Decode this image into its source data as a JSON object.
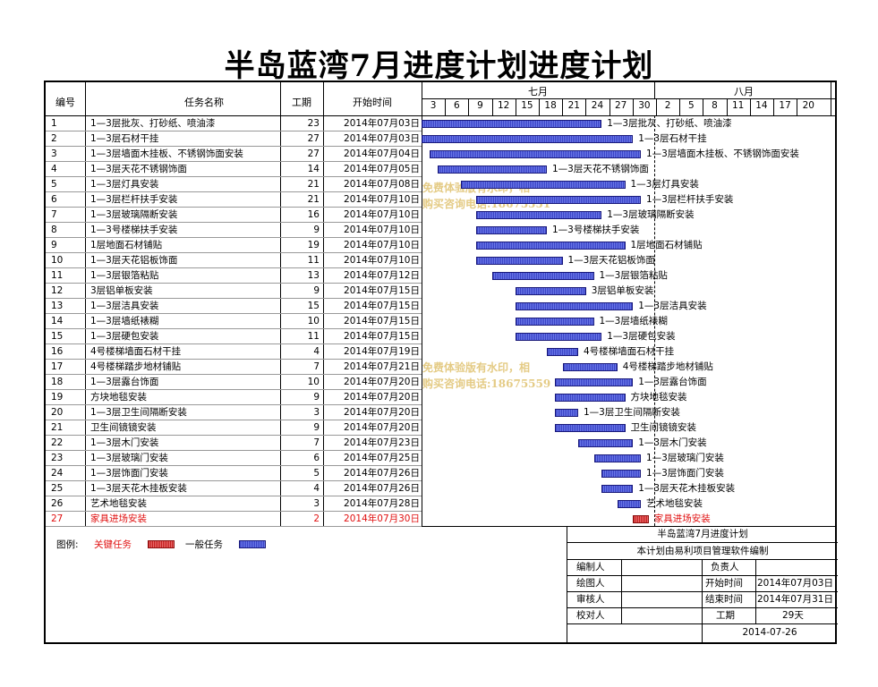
{
  "title": "半岛蓝湾7月进度计划进度计划",
  "table_headers": {
    "id": "编号",
    "name": "任务名称",
    "duration": "工期",
    "start": "开始时间"
  },
  "months": [
    {
      "label": "七月"
    },
    {
      "label": "八月"
    }
  ],
  "ticks": [
    "3",
    "6",
    "9",
    "12",
    "15",
    "18",
    "21",
    "24",
    "27",
    "30",
    "2",
    "5",
    "8",
    "11",
    "14",
    "17",
    "20"
  ],
  "chart_data": {
    "type": "gantt",
    "title": "半岛蓝湾7月进度计划进度计划",
    "axis": {
      "start": "2014-07-03",
      "unit": "day",
      "ticks": [
        "3",
        "6",
        "9",
        "12",
        "15",
        "18",
        "21",
        "24",
        "27",
        "30",
        "2",
        "5",
        "8",
        "11",
        "14",
        "17",
        "20"
      ]
    },
    "tasks": [
      {
        "id": "1",
        "name": "1—3层批灰、打砂纸、喷油漆",
        "duration": 23,
        "start": "2014年07月03日",
        "start_day": 3,
        "critical": false
      },
      {
        "id": "2",
        "name": "1—3层石材干挂",
        "duration": 27,
        "start": "2014年07月03日",
        "start_day": 3,
        "critical": false
      },
      {
        "id": "3",
        "name": "1—3层墙面木挂板、不锈钢饰面安装",
        "duration": 27,
        "start": "2014年07月04日",
        "start_day": 4,
        "critical": false
      },
      {
        "id": "4",
        "name": "1—3层天花不锈钢饰面",
        "duration": 14,
        "start": "2014年07月05日",
        "start_day": 5,
        "critical": false
      },
      {
        "id": "5",
        "name": "1—3层灯具安装",
        "duration": 21,
        "start": "2014年07月08日",
        "start_day": 8,
        "critical": false
      },
      {
        "id": "6",
        "name": "1—3层栏杆扶手安装",
        "duration": 21,
        "start": "2014年07月10日",
        "start_day": 10,
        "critical": false
      },
      {
        "id": "7",
        "name": "1—3层玻璃隔断安装",
        "duration": 16,
        "start": "2014年07月10日",
        "start_day": 10,
        "critical": false
      },
      {
        "id": "8",
        "name": "1—3号楼梯扶手安装",
        "duration": 9,
        "start": "2014年07月10日",
        "start_day": 10,
        "critical": false
      },
      {
        "id": "9",
        "name": "1层地面石材铺贴",
        "duration": 19,
        "start": "2014年07月10日",
        "start_day": 10,
        "critical": false
      },
      {
        "id": "10",
        "name": "1—3层天花铝板饰面",
        "duration": 11,
        "start": "2014年07月10日",
        "start_day": 10,
        "critical": false
      },
      {
        "id": "11",
        "name": "1—3层银箔粘贴",
        "duration": 13,
        "start": "2014年07月12日",
        "start_day": 12,
        "critical": false
      },
      {
        "id": "12",
        "name": "3层铝单板安装",
        "duration": 9,
        "start": "2014年07月15日",
        "start_day": 15,
        "critical": false
      },
      {
        "id": "13",
        "name": "1—3层洁具安装",
        "duration": 15,
        "start": "2014年07月15日",
        "start_day": 15,
        "critical": false
      },
      {
        "id": "14",
        "name": "1—3层墙纸裱糊",
        "duration": 10,
        "start": "2014年07月15日",
        "start_day": 15,
        "critical": false
      },
      {
        "id": "15",
        "name": "1—3层硬包安装",
        "duration": 11,
        "start": "2014年07月15日",
        "start_day": 15,
        "critical": false
      },
      {
        "id": "16",
        "name": "4号楼梯墙面石材干挂",
        "duration": 4,
        "start": "2014年07月19日",
        "start_day": 19,
        "critical": false
      },
      {
        "id": "17",
        "name": "4号楼梯踏步地材铺贴",
        "duration": 7,
        "start": "2014年07月21日",
        "start_day": 21,
        "critical": false
      },
      {
        "id": "18",
        "name": "1—3层露台饰面",
        "duration": 10,
        "start": "2014年07月20日",
        "start_day": 20,
        "critical": false
      },
      {
        "id": "19",
        "name": "方块地毯安装",
        "duration": 9,
        "start": "2014年07月20日",
        "start_day": 20,
        "critical": false
      },
      {
        "id": "20",
        "name": "1—3层卫生间隔断安装",
        "duration": 3,
        "start": "2014年07月20日",
        "start_day": 20,
        "critical": false
      },
      {
        "id": "21",
        "name": "卫生间镜镜安装",
        "duration": 9,
        "start": "2014年07月20日",
        "start_day": 20,
        "critical": false
      },
      {
        "id": "22",
        "name": "1—3层木门安装",
        "duration": 7,
        "start": "2014年07月23日",
        "start_day": 23,
        "critical": false
      },
      {
        "id": "23",
        "name": "1—3层玻璃门安装",
        "duration": 6,
        "start": "2014年07月25日",
        "start_day": 25,
        "critical": false
      },
      {
        "id": "24",
        "name": "1—3层饰面门安装",
        "duration": 5,
        "start": "2014年07月26日",
        "start_day": 26,
        "critical": false
      },
      {
        "id": "25",
        "name": "1—3层天花木挂板安装",
        "duration": 4,
        "start": "2014年07月26日",
        "start_day": 26,
        "critical": false
      },
      {
        "id": "26",
        "name": "艺术地毯安装",
        "duration": 3,
        "start": "2014年07月28日",
        "start_day": 28,
        "critical": false
      },
      {
        "id": "27",
        "name": "家具进场安装",
        "duration": 2,
        "start": "2014年07月30日",
        "start_day": 30,
        "critical": true
      }
    ]
  },
  "watermark": {
    "line1": "免费体验版有水印，相",
    "line2": "购买咨询电话:18675551",
    "line3": "免费体验版有水印，相",
    "line4": "购买咨询电话:18675559"
  },
  "legend": {
    "label": "图例:",
    "critical": "关键任务",
    "normal": "一般任务"
  },
  "footer": {
    "title": "半岛蓝湾7月进度计划",
    "subtitle": "本计划由易利项目管理软件编制",
    "editor_label": "编制人",
    "editor": "",
    "owner_label": "负责人",
    "owner": "",
    "drawer_label": "绘图人",
    "drawer": "",
    "start_label": "开始时间",
    "start": "2014年07月03日",
    "reviewer_label": "审核人",
    "reviewer": "",
    "end_label": "结束时间",
    "end": "2014年07月31日",
    "checker_label": "校对人",
    "checker": "",
    "duration_label": "工期",
    "duration": "29天",
    "date": "2014-07-26"
  },
  "colors": {
    "normal_bar": "#4a55d8",
    "critical_bar": "#d03030",
    "critical_text": "#e01010"
  }
}
